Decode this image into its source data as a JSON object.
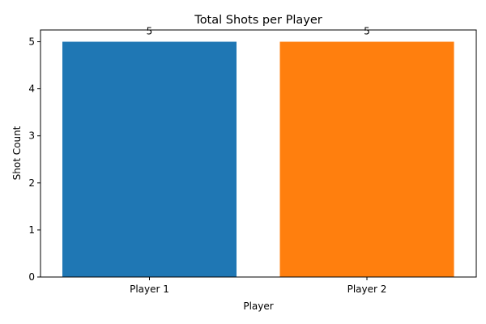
{
  "chart_data": {
    "type": "bar",
    "title": "Total Shots per Player",
    "xlabel": "Player",
    "ylabel": "Shot Count",
    "categories": [
      "Player 1",
      "Player 2"
    ],
    "values": [
      5,
      5
    ],
    "data_labels": [
      "5",
      "5"
    ],
    "colors": [
      "#1f77b4",
      "#ff7f0e"
    ],
    "ylim": [
      0,
      5.25
    ],
    "yticks": [
      0,
      1,
      2,
      3,
      4,
      5
    ],
    "grid": false,
    "legend": "none"
  }
}
